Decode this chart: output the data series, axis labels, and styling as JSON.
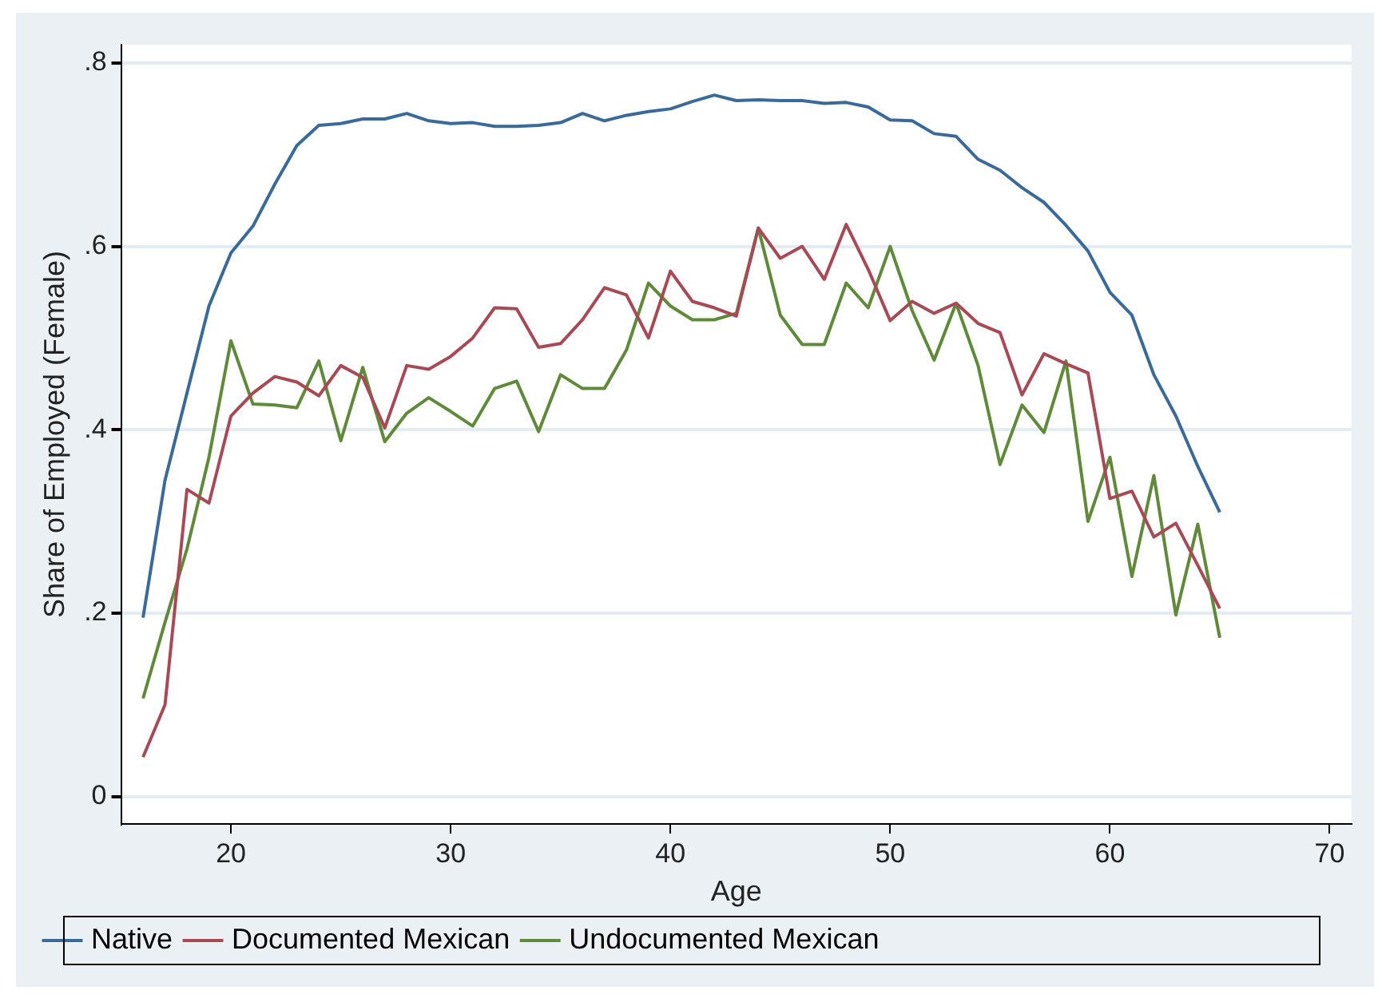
{
  "chart_data": {
    "type": "line",
    "xlabel": "Age",
    "ylabel": "Share of Employed (Female)",
    "x": [
      16,
      17,
      18,
      19,
      20,
      21,
      22,
      23,
      24,
      25,
      26,
      27,
      28,
      29,
      30,
      31,
      32,
      33,
      34,
      35,
      36,
      37,
      38,
      39,
      40,
      41,
      42,
      43,
      44,
      45,
      46,
      47,
      48,
      49,
      50,
      51,
      52,
      53,
      54,
      55,
      56,
      57,
      58,
      59,
      60,
      61,
      62,
      63,
      64,
      65
    ],
    "series": [
      {
        "name": "Native",
        "color": "#3a6a9a",
        "values": [
          0.195,
          0.345,
          0.44,
          0.535,
          0.593,
          0.622,
          0.668,
          0.71,
          0.732,
          0.734,
          0.739,
          0.739,
          0.745,
          0.737,
          0.734,
          0.735,
          0.731,
          0.731,
          0.732,
          0.735,
          0.745,
          0.737,
          0.743,
          0.747,
          0.75,
          0.758,
          0.765,
          0.759,
          0.76,
          0.759,
          0.759,
          0.756,
          0.757,
          0.752,
          0.738,
          0.737,
          0.723,
          0.72,
          0.695,
          0.683,
          0.664,
          0.648,
          0.623,
          0.595,
          0.55,
          0.525,
          0.46,
          0.415,
          0.36,
          0.31
        ]
      },
      {
        "name": "Documented Mexican",
        "color": "#a84a55",
        "values": [
          0.043,
          0.1,
          0.335,
          0.32,
          0.415,
          0.44,
          0.458,
          0.452,
          0.437,
          0.47,
          0.457,
          0.402,
          0.47,
          0.466,
          0.48,
          0.5,
          0.533,
          0.532,
          0.49,
          0.494,
          0.52,
          0.555,
          0.547,
          0.5,
          0.573,
          0.54,
          0.533,
          0.524,
          0.62,
          0.587,
          0.6,
          0.564,
          0.624,
          0.575,
          0.519,
          0.54,
          0.527,
          0.538,
          0.516,
          0.506,
          0.438,
          0.483,
          0.472,
          0.462,
          0.325,
          0.333,
          0.283,
          0.298,
          0.252,
          0.205
        ]
      },
      {
        "name": "Undocumented Mexican",
        "color": "#5f8a3a",
        "values": [
          0.107,
          0.19,
          0.27,
          0.37,
          0.497,
          0.428,
          0.427,
          0.424,
          0.475,
          0.388,
          0.468,
          0.387,
          0.418,
          0.435,
          0.42,
          0.404,
          0.445,
          0.453,
          0.398,
          0.46,
          0.445,
          0.445,
          0.487,
          0.56,
          0.535,
          0.52,
          0.52,
          0.527,
          0.62,
          0.525,
          0.493,
          0.493,
          0.56,
          0.533,
          0.6,
          0.53,
          0.476,
          0.538,
          0.47,
          0.362,
          0.427,
          0.397,
          0.475,
          0.3,
          0.37,
          0.24,
          0.35,
          0.198,
          0.297,
          0.173
        ]
      }
    ],
    "xlim": [
      15,
      71
    ],
    "xticks": [
      20,
      30,
      40,
      50,
      60,
      70
    ],
    "ylim": [
      -0.03,
      0.82
    ],
    "yticks": [
      {
        "value": 0,
        "label": "0"
      },
      {
        "value": 0.2,
        "label": ".2"
      },
      {
        "value": 0.4,
        "label": ".4"
      },
      {
        "value": 0.6,
        "label": ".6"
      },
      {
        "value": 0.8,
        "label": ".8"
      }
    ],
    "grid": "y",
    "legend": "bottom",
    "marker": "none",
    "line_style": "solid"
  }
}
